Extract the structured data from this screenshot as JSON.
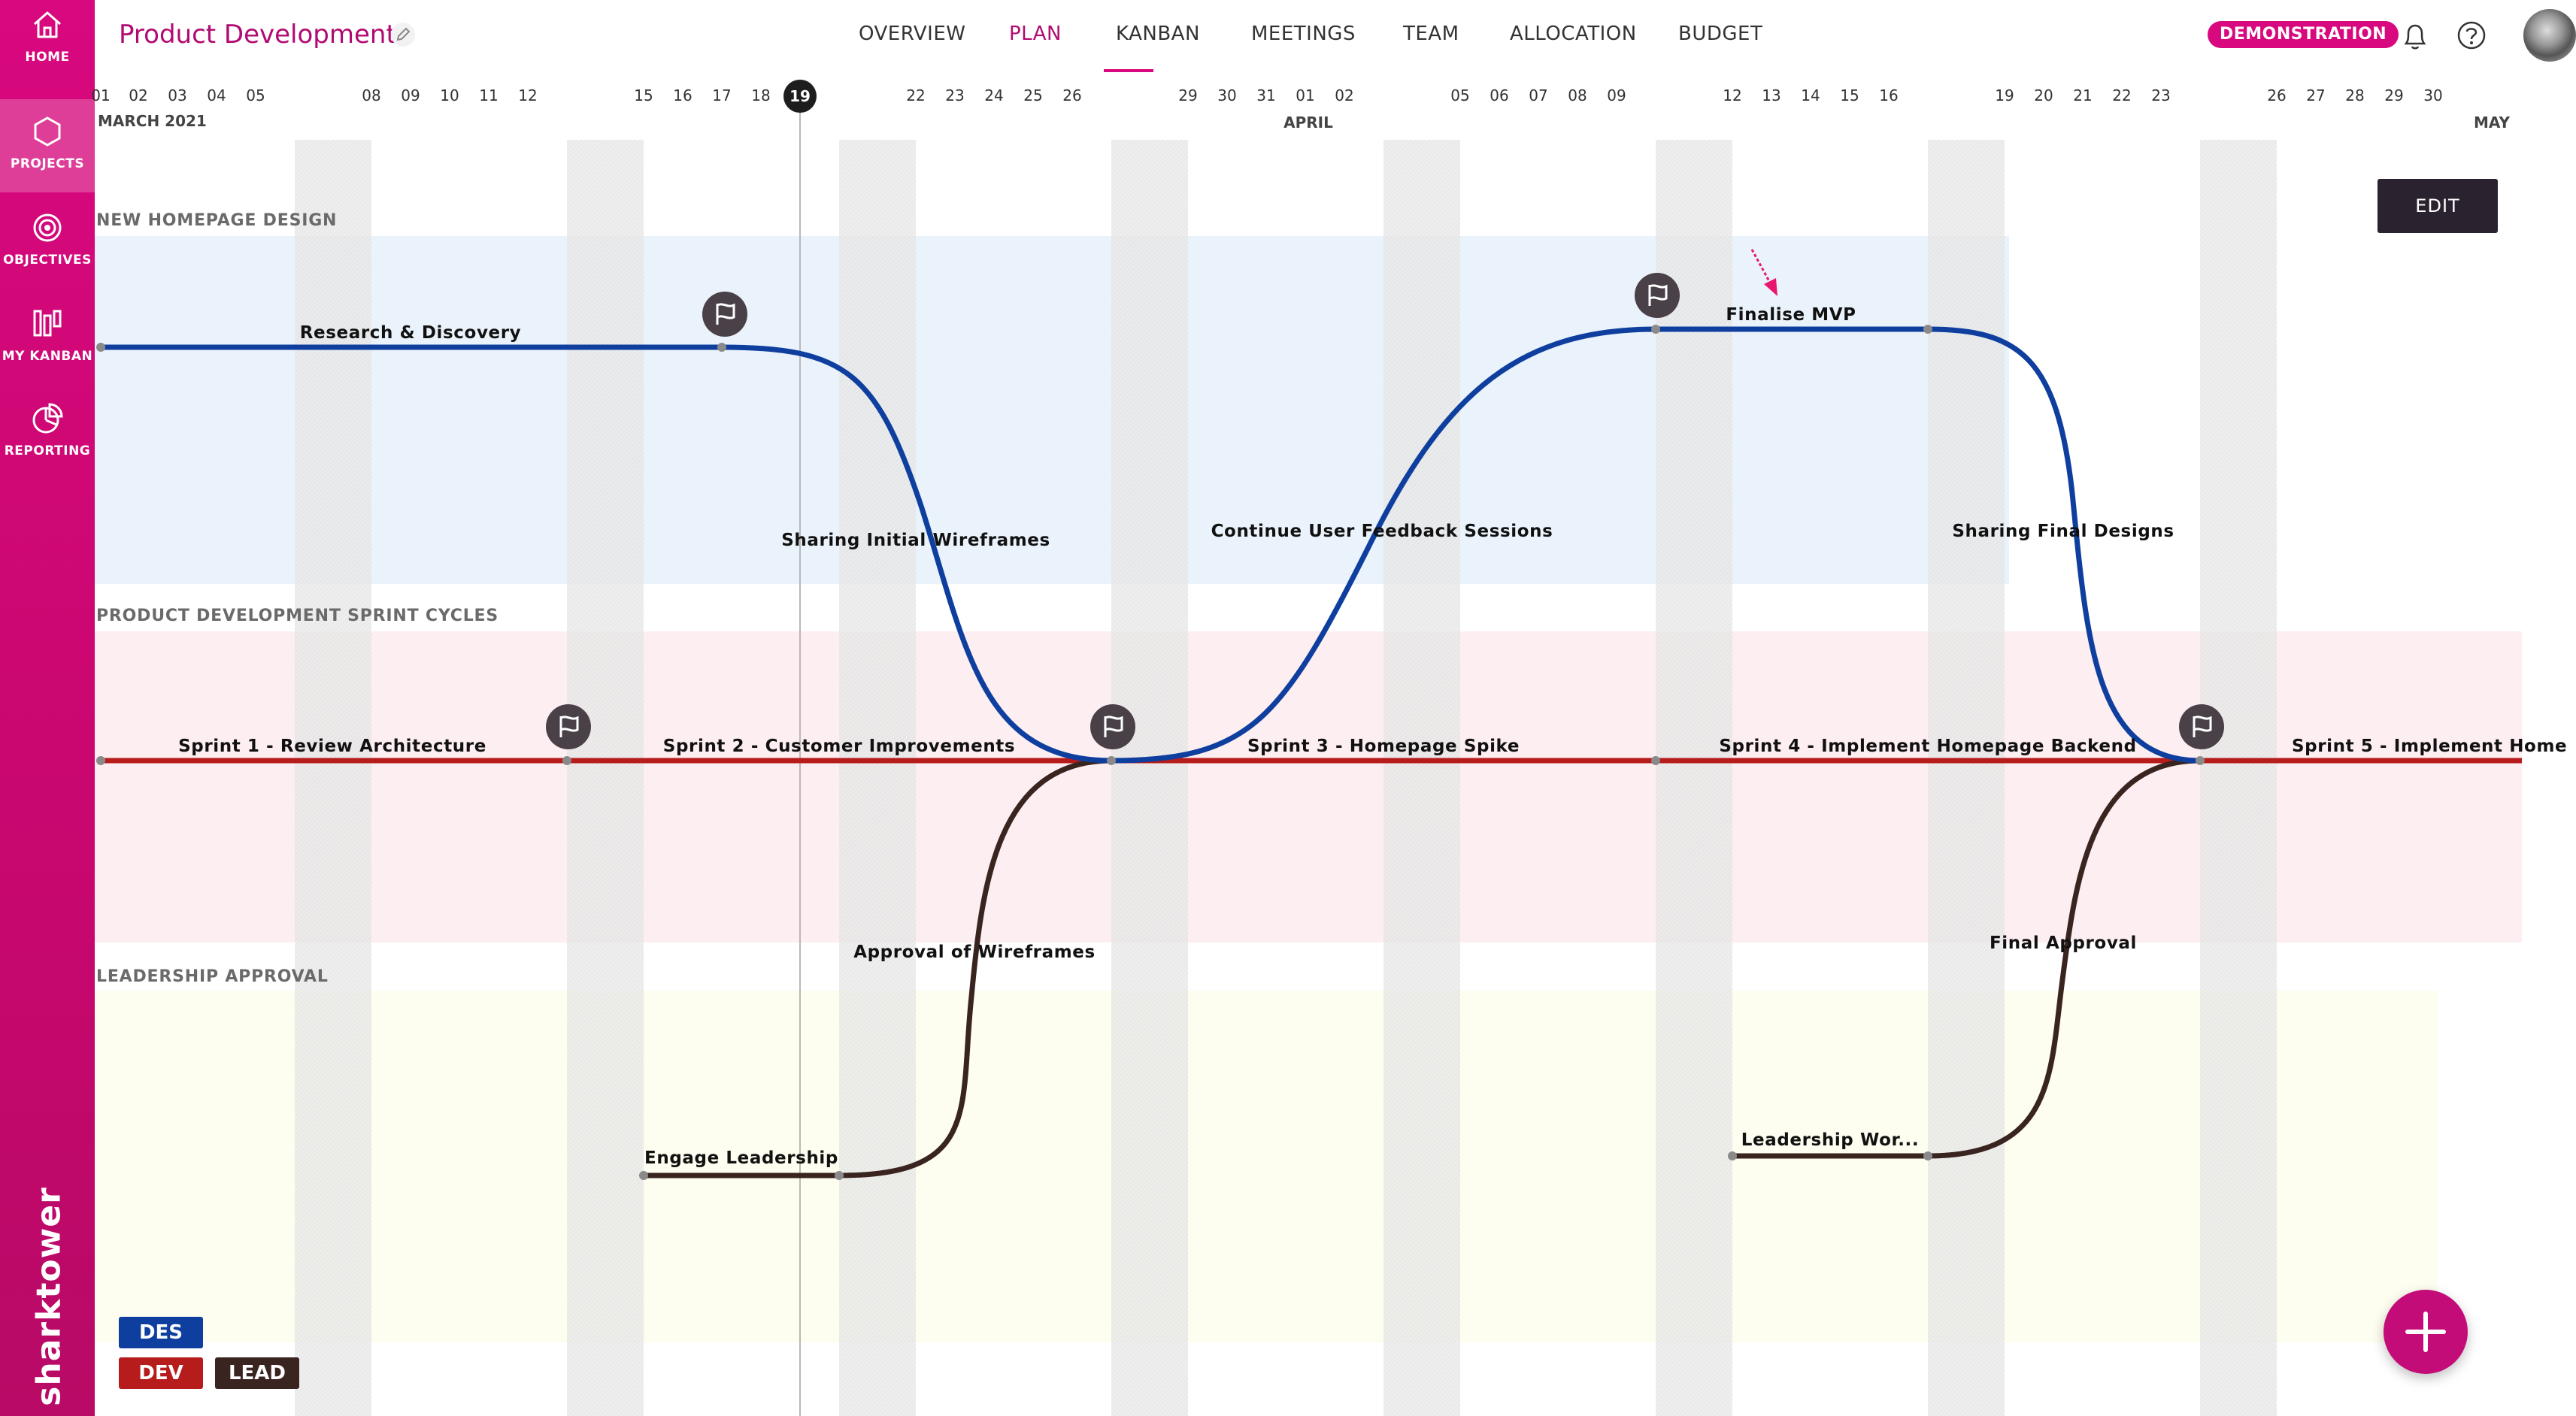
{
  "sidebar": {
    "items": [
      {
        "label": "HOME",
        "icon": "home-icon"
      },
      {
        "label": "PROJECTS",
        "icon": "hexagon-icon",
        "active": true
      },
      {
        "label": "OBJECTIVES",
        "icon": "target-icon"
      },
      {
        "label": "MY KANBAN",
        "icon": "kanban-icon"
      },
      {
        "label": "REPORTING",
        "icon": "pie-chart-icon"
      }
    ],
    "brand": "sharktower"
  },
  "header": {
    "project_title": "Product Development",
    "tabs": [
      "OVERVIEW",
      "PLAN",
      "KANBAN",
      "MEETINGS",
      "TEAM",
      "ALLOCATION",
      "BUDGET"
    ],
    "active_tab": "PLAN",
    "badge": "DEMONSTRATION"
  },
  "calendar": {
    "days": [
      "01",
      "02",
      "03",
      "04",
      "05",
      "08",
      "09",
      "10",
      "11",
      "12",
      "15",
      "16",
      "17",
      "18",
      "19",
      "22",
      "23",
      "24",
      "25",
      "26",
      "29",
      "30",
      "31",
      "01",
      "02",
      "05",
      "06",
      "07",
      "08",
      "09",
      "12",
      "13",
      "14",
      "15",
      "16",
      "19",
      "20",
      "21",
      "22",
      "23",
      "26",
      "27",
      "28",
      "29",
      "30"
    ],
    "today": "19",
    "months": [
      "MARCH 2021",
      "APRIL",
      "MAY"
    ]
  },
  "lanes": [
    {
      "title": "NEW HOMEPAGE DESIGN"
    },
    {
      "title": "PRODUCT DEVELOPMENT SPRINT CYCLES"
    },
    {
      "title": "LEADERSHIP APPROVAL"
    }
  ],
  "tasks": {
    "design": [
      "Research & Discovery",
      "Sharing Initial Wireframes",
      "Continue User Feedback Sessions",
      "Finalise MVP",
      "Sharing Final Designs"
    ],
    "dev": [
      "Sprint 1 - Review Architecture",
      "Sprint 2 - Customer Improvements",
      "Sprint 3 - Homepage Spike",
      "Sprint 4 - Implement Homepage Backend",
      "Sprint 5 - Implement Home"
    ],
    "lead": [
      "Engage Leadership",
      "Approval of Wireframes",
      "Leadership Wor...",
      "Final Approval"
    ]
  },
  "edit_label": "EDIT",
  "legend": [
    "DES",
    "DEV",
    "LEAD"
  ],
  "colors": {
    "accent": "#d8087e",
    "design": "#0f3f9e",
    "dev": "#b71c1c",
    "lead": "#3a2420",
    "lane_design_bg": "#eaf3fb",
    "lane_dev_bg": "#fdeef1",
    "lane_lead_bg": "#fdfdf0"
  }
}
